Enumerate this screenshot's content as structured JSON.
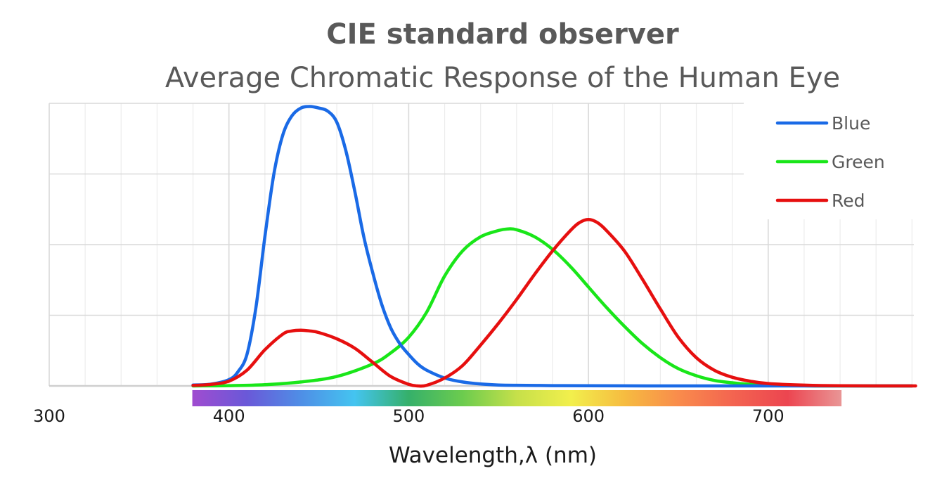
{
  "chart_data": {
    "type": "line",
    "title": "CIE standard observer",
    "subtitle": "Average Chromatic Response of the Human Eye",
    "xlabel": "Wavelength,λ (nm)",
    "ylabel": "",
    "xlim": [
      300,
      782
    ],
    "ylim": [
      0,
      1.8
    ],
    "x_ticks": [
      300,
      400,
      500,
      600,
      700
    ],
    "x_tick_labels": [
      "300",
      "400",
      "500",
      "600",
      "700"
    ],
    "grid": true,
    "legend": "top-right",
    "series": [
      {
        "name": "Blue",
        "color": "#1a6ae6",
        "x": [
          380,
          390,
          400,
          405,
          410,
          415,
          420,
          425,
          430,
          435,
          440,
          445,
          450,
          455,
          460,
          465,
          470,
          475,
          480,
          485,
          490,
          495,
          500,
          505,
          510,
          520,
          530,
          540,
          550,
          560,
          580,
          600,
          650,
          700,
          780
        ],
        "y": [
          0.006,
          0.011,
          0.04,
          0.09,
          0.2,
          0.5,
          0.95,
          1.35,
          1.6,
          1.72,
          1.77,
          1.78,
          1.77,
          1.75,
          1.68,
          1.5,
          1.24,
          0.95,
          0.72,
          0.52,
          0.37,
          0.27,
          0.2,
          0.14,
          0.1,
          0.05,
          0.025,
          0.012,
          0.006,
          0.004,
          0.002,
          0.001,
          0,
          0,
          0
        ]
      },
      {
        "name": "Green",
        "color": "#19e619",
        "x": [
          380,
          400,
          420,
          440,
          460,
          480,
          490,
          500,
          510,
          520,
          530,
          540,
          550,
          555,
          560,
          570,
          580,
          590,
          600,
          610,
          620,
          630,
          640,
          650,
          660,
          670,
          680,
          690,
          700,
          720,
          740,
          780
        ],
        "y": [
          0,
          0.002,
          0.008,
          0.025,
          0.06,
          0.14,
          0.21,
          0.31,
          0.47,
          0.7,
          0.86,
          0.95,
          0.99,
          1.0,
          0.995,
          0.95,
          0.87,
          0.76,
          0.63,
          0.5,
          0.38,
          0.27,
          0.18,
          0.11,
          0.065,
          0.035,
          0.02,
          0.01,
          0.005,
          0.001,
          0,
          0
        ]
      },
      {
        "name": "Red",
        "color": "#e60f0f",
        "x": [
          380,
          390,
          400,
          410,
          420,
          430,
          435,
          440,
          445,
          450,
          460,
          470,
          480,
          490,
          500,
          505,
          510,
          520,
          530,
          540,
          550,
          560,
          570,
          580,
          590,
          595,
          600,
          605,
          610,
          620,
          630,
          640,
          650,
          660,
          670,
          680,
          690,
          700,
          720,
          740,
          782
        ],
        "y": [
          0.003,
          0.01,
          0.03,
          0.1,
          0.23,
          0.33,
          0.35,
          0.355,
          0.35,
          0.34,
          0.3,
          0.24,
          0.15,
          0.06,
          0.01,
          0.0,
          0.004,
          0.05,
          0.13,
          0.26,
          0.4,
          0.55,
          0.71,
          0.86,
          0.99,
          1.04,
          1.06,
          1.04,
          0.99,
          0.86,
          0.68,
          0.49,
          0.31,
          0.18,
          0.1,
          0.055,
          0.03,
          0.015,
          0.005,
          0.001,
          0
        ]
      }
    ],
    "spectrum_range": [
      380,
      740
    ],
    "spectrum_colors": [
      "#a04cd0",
      "#6a58d8",
      "#4f8ee6",
      "#44c4f0",
      "#35b06a",
      "#6ccc4e",
      "#c6e04a",
      "#f2ef4c",
      "#f6bb40",
      "#f98b4c",
      "#f36450",
      "#ec4550",
      "#e99696"
    ]
  }
}
